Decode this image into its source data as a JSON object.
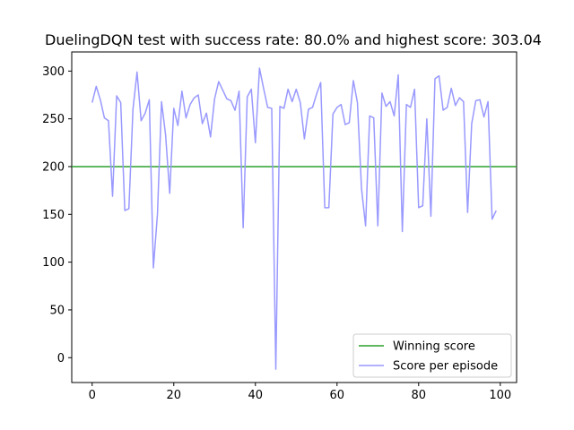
{
  "chart_data": {
    "type": "line",
    "title": "DuelingDQN test with success rate: 80.0% and highest score: 303.04",
    "xlabel": "",
    "ylabel": "",
    "xlim": [
      -5,
      104
    ],
    "ylim": [
      -26,
      320
    ],
    "x_ticks": [
      0,
      20,
      40,
      60,
      80,
      100
    ],
    "y_ticks": [
      0,
      50,
      100,
      150,
      200,
      250,
      300
    ],
    "grid": false,
    "legend_position": "lower-right",
    "reference_line": {
      "name": "Winning score",
      "y": 200,
      "color": "#2ca02c"
    },
    "series": [
      {
        "name": "Score per episode",
        "color": "#9999ff",
        "x": [
          0,
          1,
          2,
          3,
          4,
          5,
          6,
          7,
          8,
          9,
          10,
          11,
          12,
          13,
          14,
          15,
          16,
          17,
          18,
          19,
          20,
          21,
          22,
          23,
          24,
          25,
          26,
          27,
          28,
          29,
          30,
          31,
          32,
          33,
          34,
          35,
          36,
          37,
          38,
          39,
          40,
          41,
          42,
          43,
          44,
          45,
          46,
          47,
          48,
          49,
          50,
          51,
          52,
          53,
          54,
          55,
          56,
          57,
          58,
          59,
          60,
          61,
          62,
          63,
          64,
          65,
          66,
          67,
          68,
          69,
          70,
          71,
          72,
          73,
          74,
          75,
          76,
          77,
          78,
          79,
          80,
          81,
          82,
          83,
          84,
          85,
          86,
          87,
          88,
          89,
          90,
          91,
          92,
          93,
          94,
          95,
          96,
          97,
          98,
          99
        ],
        "values": [
          267,
          284,
          270,
          251,
          248,
          169,
          274,
          267,
          154,
          156,
          260,
          299,
          248,
          256,
          270,
          94,
          150,
          268,
          233,
          172,
          261,
          243,
          279,
          251,
          265,
          272,
          275,
          245,
          256,
          231,
          271,
          289,
          280,
          271,
          269,
          259,
          279,
          136,
          273,
          281,
          225,
          303,
          282,
          262,
          261,
          -12,
          263,
          261,
          281,
          268,
          281,
          267,
          229,
          260,
          262,
          276,
          288,
          157,
          157,
          255,
          262,
          265,
          244,
          246,
          290,
          267,
          177,
          138,
          253,
          251,
          138,
          277,
          263,
          268,
          253,
          296,
          132,
          265,
          262,
          281,
          157,
          159,
          250,
          148,
          292,
          295,
          259,
          262,
          282,
          264,
          272,
          268,
          152,
          245,
          269,
          270,
          252,
          268,
          145,
          154
        ]
      }
    ]
  }
}
